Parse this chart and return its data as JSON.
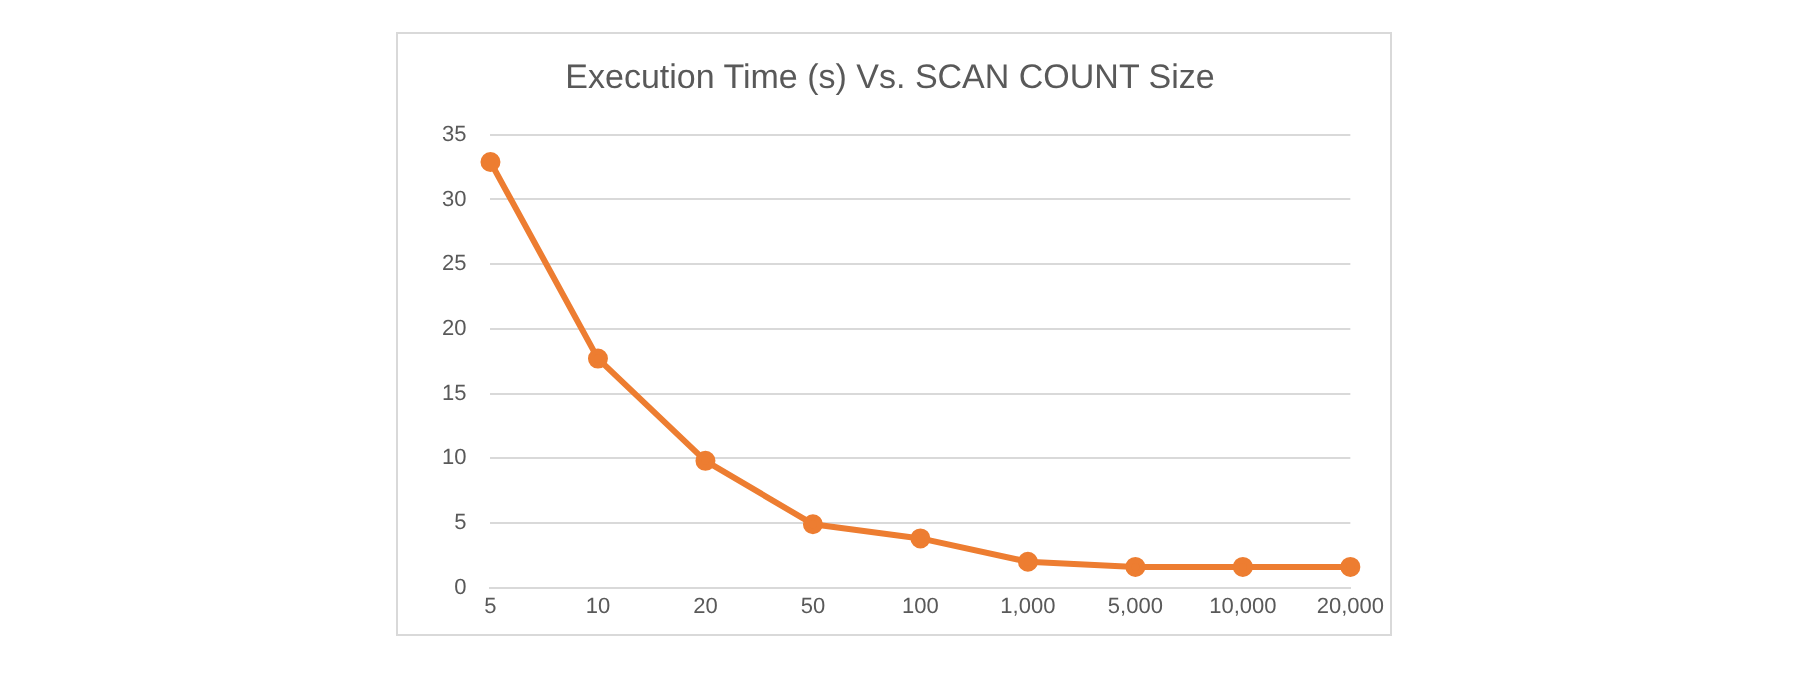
{
  "chart_data": {
    "type": "line",
    "title": "Execution Time (s) Vs. SCAN COUNT Size",
    "categories": [
      "5",
      "10",
      "20",
      "50",
      "100",
      "1,000",
      "5,000",
      "10,000",
      "20,000"
    ],
    "series": [
      {
        "color": "#ed7d31",
        "values": [
          32.9,
          17.7,
          9.8,
          4.9,
          3.8,
          2.0,
          1.6,
          1.6,
          1.6
        ]
      }
    ],
    "ylim": [
      0,
      35
    ],
    "yticks": [
      0,
      5,
      10,
      15,
      20,
      25,
      30,
      35
    ],
    "grid": "y",
    "legend": false,
    "marker": "circle",
    "line_style": "solid"
  }
}
